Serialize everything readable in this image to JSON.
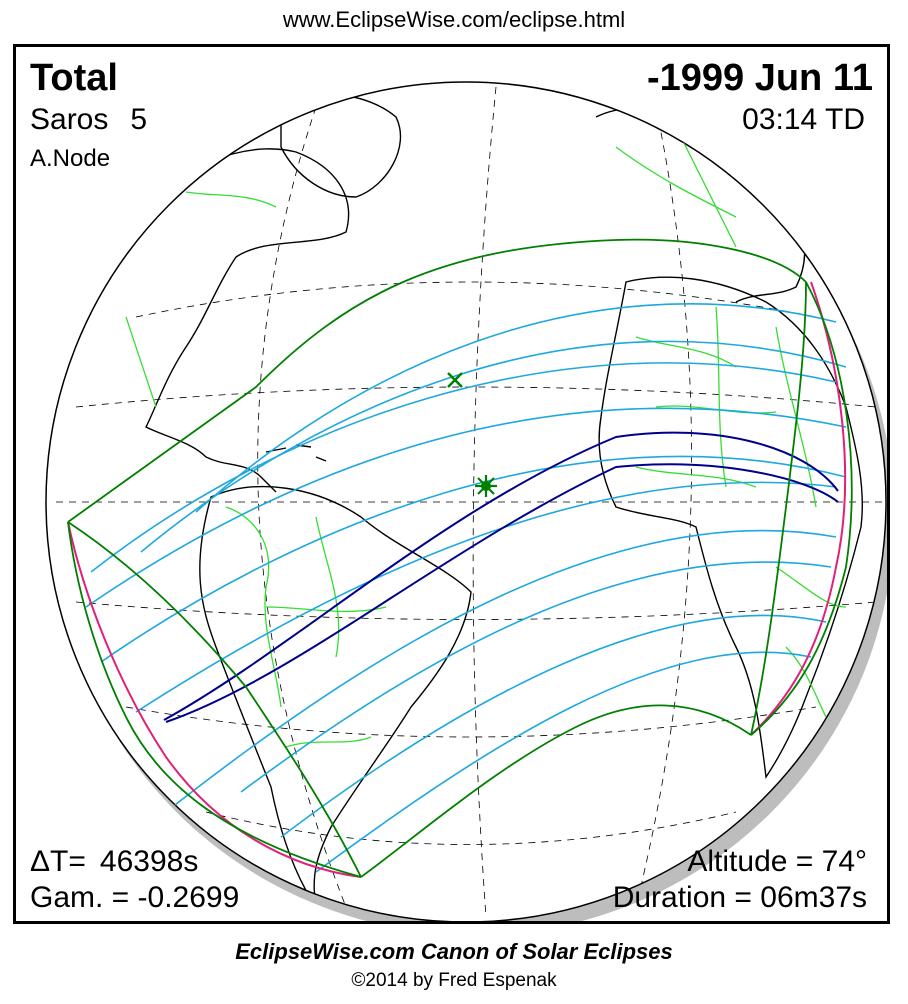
{
  "header": {
    "url": "www.EclipseWise.com/eclipse.html"
  },
  "eclipse": {
    "type": "Total",
    "date": "-1999 Jun 11",
    "saros_label": "Saros",
    "saros_number": "5",
    "node": "A.Node",
    "time": "03:14 TD",
    "delta_t_label": "ΔT=",
    "delta_t_value": "46398s",
    "gamma": "Gam. = -0.2699",
    "altitude": "Altitude = 74°",
    "duration": "Duration = 06m37s"
  },
  "map": {
    "projection": "orthographic",
    "markers": [
      {
        "kind": "x",
        "meaning": "sub-solar point",
        "color": "#007f00"
      },
      {
        "kind": "star",
        "meaning": "greatest eclipse",
        "color": "#007f00"
      }
    ],
    "colors": {
      "coastline": "#000000",
      "borders": "#33dd33",
      "penumbra_limits": "#007f00",
      "umbra_path": "#00008b",
      "magnitude_curves": "#1ea8e0",
      "rise_set_curves": "#e0207a",
      "graticule": "#000000",
      "globe_shadow": "#b8b8b8"
    }
  },
  "footer": {
    "title": "EclipseWise.com Canon of Solar Eclipses",
    "copyright": "©2014 by Fred Espenak"
  }
}
